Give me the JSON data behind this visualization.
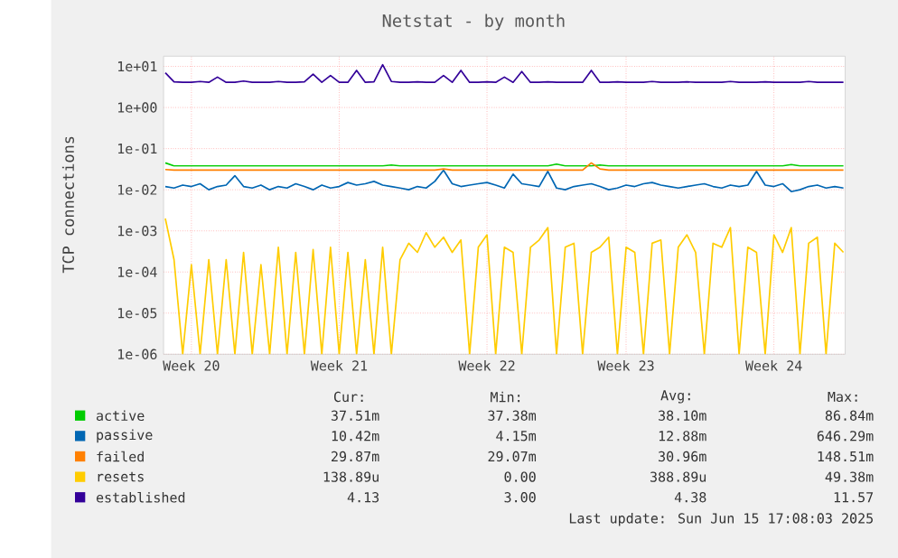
{
  "chart_data": {
    "type": "line",
    "title": "Netstat - by month",
    "ylabel": "TCP connections",
    "log": "y",
    "grid": true,
    "legend": "bottom",
    "ylim": [
      1e-06,
      17.7
    ],
    "yticks": [
      {
        "value": 10,
        "label": "1e+01"
      },
      {
        "value": 1,
        "label": "1e+00"
      },
      {
        "value": 0.1,
        "label": "1e-01"
      },
      {
        "value": 0.01,
        "label": "1e-02"
      },
      {
        "value": 0.001,
        "label": "1e-03"
      },
      {
        "value": 0.0001,
        "label": "1e-04"
      },
      {
        "value": 1e-05,
        "label": "1e-05"
      },
      {
        "value": 1e-06,
        "label": "1e-06"
      }
    ],
    "categories": [
      null,
      null,
      null,
      "Week 20",
      null,
      null,
      null,
      null,
      null,
      null,
      null,
      null,
      null,
      null,
      null,
      null,
      null,
      null,
      null,
      null,
      "Week 21",
      null,
      null,
      null,
      null,
      null,
      null,
      null,
      null,
      null,
      null,
      null,
      null,
      null,
      null,
      null,
      null,
      "Week 22",
      null,
      null,
      null,
      null,
      null,
      null,
      null,
      null,
      null,
      null,
      null,
      null,
      null,
      null,
      null,
      "Week 23",
      null,
      null,
      null,
      null,
      null,
      null,
      null,
      null,
      null,
      null,
      null,
      null,
      null,
      null,
      null,
      null,
      "Week 24",
      null,
      null,
      null,
      null,
      null,
      null,
      null,
      null
    ],
    "series": [
      {
        "name": "active",
        "color": "#00cc00",
        "values": [
          0.045,
          0.038,
          0.038,
          0.038,
          0.038,
          0.038,
          0.038,
          0.038,
          0.038,
          0.038,
          0.038,
          0.038,
          0.038,
          0.038,
          0.038,
          0.038,
          0.038,
          0.038,
          0.038,
          0.038,
          0.038,
          0.038,
          0.038,
          0.038,
          0.038,
          0.038,
          0.04,
          0.038,
          0.038,
          0.038,
          0.038,
          0.038,
          0.038,
          0.038,
          0.038,
          0.038,
          0.038,
          0.038,
          0.038,
          0.038,
          0.038,
          0.038,
          0.038,
          0.038,
          0.038,
          0.042,
          0.038,
          0.038,
          0.038,
          0.038,
          0.04,
          0.038,
          0.038,
          0.038,
          0.038,
          0.038,
          0.038,
          0.038,
          0.038,
          0.038,
          0.038,
          0.038,
          0.038,
          0.038,
          0.038,
          0.038,
          0.038,
          0.038,
          0.038,
          0.038,
          0.038,
          0.038,
          0.041,
          0.038,
          0.038,
          0.038,
          0.038,
          0.038,
          0.038
        ]
      },
      {
        "name": "passive",
        "color": "#0066b3",
        "values": [
          0.012,
          0.011,
          0.013,
          0.012,
          0.014,
          0.01,
          0.012,
          0.013,
          0.022,
          0.012,
          0.011,
          0.013,
          0.01,
          0.012,
          0.011,
          0.014,
          0.012,
          0.01,
          0.013,
          0.011,
          0.012,
          0.015,
          0.013,
          0.014,
          0.016,
          0.013,
          0.012,
          0.011,
          0.01,
          0.012,
          0.011,
          0.016,
          0.03,
          0.014,
          0.012,
          0.013,
          0.014,
          0.015,
          0.013,
          0.011,
          0.024,
          0.014,
          0.013,
          0.012,
          0.028,
          0.011,
          0.01,
          0.012,
          0.013,
          0.014,
          0.012,
          0.01,
          0.011,
          0.013,
          0.012,
          0.014,
          0.015,
          0.013,
          0.012,
          0.011,
          0.012,
          0.013,
          0.014,
          0.012,
          0.011,
          0.013,
          0.012,
          0.013,
          0.028,
          0.013,
          0.012,
          0.014,
          0.009,
          0.01,
          0.012,
          0.013,
          0.011,
          0.012,
          0.011
        ]
      },
      {
        "name": "failed",
        "color": "#ff8000",
        "values": [
          0.031,
          0.03,
          0.03,
          0.03,
          0.03,
          0.03,
          0.03,
          0.03,
          0.03,
          0.03,
          0.03,
          0.03,
          0.03,
          0.03,
          0.03,
          0.03,
          0.03,
          0.03,
          0.03,
          0.03,
          0.03,
          0.03,
          0.03,
          0.03,
          0.03,
          0.03,
          0.03,
          0.03,
          0.03,
          0.03,
          0.03,
          0.03,
          0.032,
          0.03,
          0.03,
          0.03,
          0.03,
          0.03,
          0.03,
          0.03,
          0.03,
          0.03,
          0.03,
          0.03,
          0.03,
          0.03,
          0.03,
          0.03,
          0.03,
          0.045,
          0.032,
          0.03,
          0.03,
          0.03,
          0.03,
          0.03,
          0.03,
          0.03,
          0.03,
          0.03,
          0.03,
          0.03,
          0.03,
          0.03,
          0.03,
          0.03,
          0.03,
          0.03,
          0.03,
          0.03,
          0.03,
          0.03,
          0.03,
          0.03,
          0.03,
          0.03,
          0.03,
          0.03,
          0.03
        ]
      },
      {
        "name": "resets",
        "color": "#ffcc00",
        "values": [
          0.002,
          0.0002,
          1e-06,
          0.00015,
          1e-06,
          0.0002,
          1e-06,
          0.0002,
          1e-06,
          0.0003,
          1e-06,
          0.00015,
          1e-06,
          0.0004,
          1e-06,
          0.0003,
          1e-06,
          0.00035,
          1e-06,
          0.0004,
          1e-06,
          0.0003,
          1e-06,
          0.0002,
          1e-06,
          0.0004,
          1e-06,
          0.0002,
          0.0005,
          0.0003,
          0.0009,
          0.0004,
          0.0007,
          0.0003,
          0.0006,
          1e-06,
          0.0004,
          0.0008,
          1e-06,
          0.0004,
          0.0003,
          1e-06,
          0.0004,
          0.0006,
          0.0012,
          1e-06,
          0.0004,
          0.0005,
          1e-06,
          0.0003,
          0.0004,
          0.0007,
          1e-06,
          0.0004,
          0.0003,
          1e-06,
          0.0005,
          0.0006,
          1e-06,
          0.0004,
          0.0008,
          0.0003,
          1e-06,
          0.0005,
          0.0004,
          0.0012,
          1e-06,
          0.0004,
          0.0003,
          1e-06,
          0.0008,
          0.0003,
          0.0012,
          1e-06,
          0.0005,
          0.0007,
          1e-06,
          0.0005,
          0.0003
        ]
      },
      {
        "name": "established",
        "color": "#330099",
        "values": [
          7,
          4.2,
          4.1,
          4.1,
          4.3,
          4.1,
          5.5,
          4.1,
          4.1,
          4.4,
          4.1,
          4.1,
          4.1,
          4.3,
          4.1,
          4.1,
          4.2,
          6.5,
          4.1,
          6,
          4.1,
          4.1,
          8,
          4.1,
          4.2,
          11,
          4.3,
          4.1,
          4.1,
          4.2,
          4.1,
          4.1,
          6,
          4.1,
          8,
          4.1,
          4.1,
          4.2,
          4.1,
          5.5,
          4.1,
          7.5,
          4.1,
          4.1,
          4.2,
          4.1,
          4.1,
          4.1,
          4.1,
          8,
          4.1,
          4.1,
          4.2,
          4.1,
          4.1,
          4.1,
          4.3,
          4.1,
          4.1,
          4.1,
          4.2,
          4.1,
          4.1,
          4.1,
          4.1,
          4.3,
          4.1,
          4.1,
          4.1,
          4.2,
          4.1,
          4.1,
          4.1,
          4.1,
          4.3,
          4.1,
          4.1,
          4.1,
          4.1
        ]
      }
    ],
    "annotations": [
      "Cur:",
      "Min:",
      "Avg:",
      "Max:",
      "37.51m",
      "37.38m",
      "38.10m",
      "86.84m",
      "10.42m",
      "4.15m",
      "12.88m",
      "646.29m",
      "29.87m",
      "29.07m",
      "30.96m",
      "148.51m",
      "138.89u",
      "0.00",
      "388.89u",
      "49.38m",
      "4.13",
      "3.00",
      "4.38",
      "11.57",
      "Last update: Sun Jun 15 17:08:03 2025"
    ]
  }
}
